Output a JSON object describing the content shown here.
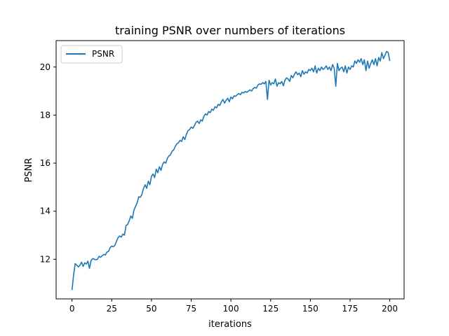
{
  "chart_data": {
    "type": "line",
    "title": "training PSNR over numbers of iterations",
    "xlabel": "iterations",
    "ylabel": "PSNR",
    "xlim": [
      -10,
      209
    ],
    "ylim": [
      10.35,
      21.1
    ],
    "xticks": [
      0,
      25,
      50,
      75,
      100,
      125,
      150,
      175,
      200
    ],
    "yticks": [
      12,
      14,
      16,
      18,
      20
    ],
    "grid": false,
    "legend": {
      "position": "top-left",
      "entries": [
        "PSNR"
      ]
    },
    "series": [
      {
        "name": "PSNR",
        "color": "#1f77b4",
        "x_start": 0,
        "x_step": 1,
        "values": [
          10.72,
          11.35,
          11.82,
          11.75,
          11.68,
          11.75,
          11.88,
          11.7,
          11.85,
          11.8,
          11.92,
          11.62,
          11.95,
          12.03,
          12.0,
          11.98,
          12.0,
          12.12,
          12.08,
          12.15,
          12.2,
          12.18,
          12.3,
          12.33,
          12.48,
          12.55,
          12.52,
          12.58,
          12.75,
          12.9,
          12.97,
          12.92,
          13.05,
          13.0,
          13.4,
          13.45,
          13.6,
          13.8,
          13.7,
          14.05,
          14.2,
          14.35,
          14.6,
          14.58,
          14.7,
          14.95,
          15.1,
          14.95,
          15.25,
          15.1,
          15.45,
          15.55,
          15.4,
          15.75,
          15.6,
          15.85,
          15.7,
          15.95,
          16.05,
          16.0,
          16.2,
          16.3,
          16.35,
          16.5,
          16.55,
          16.7,
          16.8,
          16.85,
          16.95,
          16.9,
          17.1,
          16.98,
          17.2,
          17.35,
          17.4,
          17.5,
          17.45,
          17.55,
          17.7,
          17.75,
          17.65,
          17.8,
          17.75,
          17.95,
          18.05,
          18.0,
          18.15,
          18.1,
          18.25,
          18.2,
          18.35,
          18.3,
          18.45,
          18.4,
          18.55,
          18.65,
          18.5,
          18.62,
          18.7,
          18.55,
          18.75,
          18.68,
          18.8,
          18.78,
          18.85,
          18.9,
          18.85,
          18.95,
          18.92,
          18.98,
          18.95,
          19.0,
          19.05,
          19.0,
          19.1,
          19.15,
          19.12,
          19.25,
          19.3,
          19.28,
          19.35,
          19.3,
          19.4,
          18.65,
          19.45,
          19.25,
          19.35,
          19.3,
          19.5,
          19.2,
          19.35,
          19.3,
          19.4,
          19.22,
          19.45,
          19.55,
          19.5,
          19.4,
          19.65,
          19.55,
          19.7,
          19.8,
          19.68,
          19.75,
          19.6,
          19.85,
          19.7,
          19.8,
          19.75,
          19.9,
          19.85,
          19.95,
          19.8,
          20.05,
          19.75,
          19.95,
          19.85,
          20.0,
          19.9,
          19.95,
          20.05,
          19.9,
          20.0,
          19.85,
          20.1,
          19.95,
          19.2,
          20.15,
          19.85,
          19.95,
          20.0,
          19.8,
          20.05,
          19.75,
          20.0,
          19.9,
          20.05,
          20.0,
          20.25,
          20.15,
          20.3,
          20.2,
          20.35,
          20.1,
          20.3,
          19.85,
          20.25,
          19.95,
          20.15,
          20.3,
          20.1,
          20.35,
          20.05,
          20.4,
          20.25,
          20.6,
          20.35,
          20.5,
          20.65,
          20.6,
          20.25
        ]
      }
    ]
  }
}
